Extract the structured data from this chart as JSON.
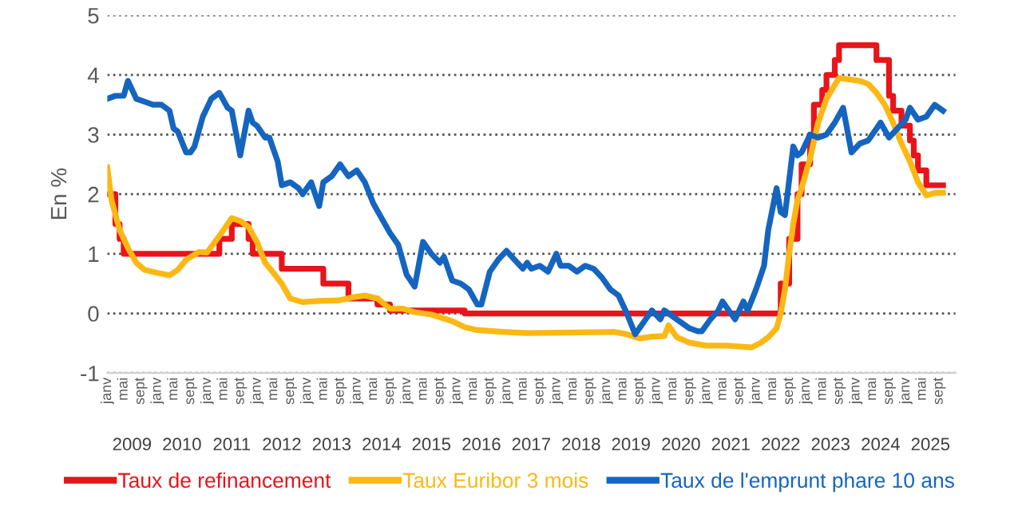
{
  "chart_data": {
    "type": "line",
    "ylabel": "En %",
    "ylim": [
      -1,
      5
    ],
    "yticks": [
      -1,
      0,
      1,
      2,
      3,
      4,
      5
    ],
    "grid": "y",
    "legend": "bottom",
    "marker": "none",
    "line_style": "solid",
    "xlim": [
      "2009-01",
      "2026-01"
    ],
    "xticks": [
      {
        "value": "2009-01",
        "label": "janv"
      },
      {
        "value": "2009-05",
        "label": "mai"
      },
      {
        "value": "2009-09",
        "label": "sept"
      },
      {
        "value": "2010-01",
        "label": "janv"
      },
      {
        "value": "2010-05",
        "label": "mai"
      },
      {
        "value": "2010-09",
        "label": "sept"
      },
      {
        "value": "2011-01",
        "label": "janv"
      },
      {
        "value": "2011-05",
        "label": "mai"
      },
      {
        "value": "2011-09",
        "label": "sept"
      },
      {
        "value": "2012-01",
        "label": "janv"
      },
      {
        "value": "2012-05",
        "label": "mai"
      },
      {
        "value": "2012-09",
        "label": "sept"
      },
      {
        "value": "2013-01",
        "label": "janv"
      },
      {
        "value": "2013-05",
        "label": "mai"
      },
      {
        "value": "2013-09",
        "label": "sept"
      },
      {
        "value": "2014-01",
        "label": "janv"
      },
      {
        "value": "2014-05",
        "label": "mai"
      },
      {
        "value": "2014-09",
        "label": "sept"
      },
      {
        "value": "2015-01",
        "label": "janv"
      },
      {
        "value": "2015-05",
        "label": "mai"
      },
      {
        "value": "2015-09",
        "label": "sept"
      },
      {
        "value": "2016-01",
        "label": "janv"
      },
      {
        "value": "2016-05",
        "label": "mai"
      },
      {
        "value": "2016-09",
        "label": "sept"
      },
      {
        "value": "2017-01",
        "label": "janv"
      },
      {
        "value": "2017-05",
        "label": "mai"
      },
      {
        "value": "2017-09",
        "label": "sept"
      },
      {
        "value": "2018-01",
        "label": "janv"
      },
      {
        "value": "2018-05",
        "label": "mai"
      },
      {
        "value": "2018-09",
        "label": "sept"
      },
      {
        "value": "2019-01",
        "label": "janv"
      },
      {
        "value": "2019-05",
        "label": "mai"
      },
      {
        "value": "2019-09",
        "label": "sept"
      },
      {
        "value": "2020-01",
        "label": "janv"
      },
      {
        "value": "2020-05",
        "label": "mai"
      },
      {
        "value": "2020-09",
        "label": "sept"
      },
      {
        "value": "2021-01",
        "label": "janv"
      },
      {
        "value": "2021-05",
        "label": "mai"
      },
      {
        "value": "2021-09",
        "label": "sept"
      },
      {
        "value": "2022-01",
        "label": "janv"
      },
      {
        "value": "2022-05",
        "label": "mai"
      },
      {
        "value": "2022-09",
        "label": "sept"
      },
      {
        "value": "2023-01",
        "label": "janv"
      },
      {
        "value": "2023-05",
        "label": "mai"
      },
      {
        "value": "2023-09",
        "label": "sept"
      },
      {
        "value": "2024-01",
        "label": "janv"
      },
      {
        "value": "2024-05",
        "label": "mai"
      },
      {
        "value": "2024-09",
        "label": "sept"
      },
      {
        "value": "2025-01",
        "label": "janv"
      },
      {
        "value": "2025-05",
        "label": "mai"
      },
      {
        "value": "2025-09",
        "label": "sept"
      }
    ],
    "x2lim": [
      "2009-01",
      "2026-01"
    ],
    "x2ticks": [
      {
        "value": "2009-07",
        "label": "2009"
      },
      {
        "value": "2010-07",
        "label": "2010"
      },
      {
        "value": "2011-07",
        "label": "2011"
      },
      {
        "value": "2012-07",
        "label": "2012"
      },
      {
        "value": "2013-07",
        "label": "2013"
      },
      {
        "value": "2014-07",
        "label": "2014"
      },
      {
        "value": "2015-07",
        "label": "2015"
      },
      {
        "value": "2016-07",
        "label": "2016"
      },
      {
        "value": "2017-07",
        "label": "2017"
      },
      {
        "value": "2018-07",
        "label": "2018"
      },
      {
        "value": "2019-07",
        "label": "2019"
      },
      {
        "value": "2020-07",
        "label": "2020"
      },
      {
        "value": "2021-07",
        "label": "2021"
      },
      {
        "value": "2022-07",
        "label": "2022"
      },
      {
        "value": "2023-07",
        "label": "2023"
      },
      {
        "value": "2024-07",
        "label": "2024"
      },
      {
        "value": "2025-07",
        "label": "2025"
      }
    ],
    "series": [
      {
        "name": "Taux de refinancement",
        "type": "step",
        "color": "#e8141b",
        "x": [
          "2009-01",
          "2009-03",
          "2009-04",
          "2009-05",
          "2011-04",
          "2011-07",
          "2011-11",
          "2011-12",
          "2012-07",
          "2013-05",
          "2013-11",
          "2014-06",
          "2014-09",
          "2016-03",
          "2022-07",
          "2022-09",
          "2022-11",
          "2022-12",
          "2023-02",
          "2023-03",
          "2023-05",
          "2023-06",
          "2023-08",
          "2023-09",
          "2024-06",
          "2024-09",
          "2024-10",
          "2024-12",
          "2025-02",
          "2025-03",
          "2025-04",
          "2025-06",
          "2025-10"
        ],
        "values": [
          2.0,
          1.5,
          1.25,
          1.0,
          1.25,
          1.5,
          1.25,
          1.0,
          0.75,
          0.5,
          0.25,
          0.15,
          0.05,
          0.0,
          0.5,
          1.25,
          2.0,
          2.5,
          3.0,
          3.5,
          3.75,
          4.0,
          4.25,
          4.5,
          4.25,
          3.65,
          3.4,
          3.15,
          2.9,
          2.65,
          2.4,
          2.15,
          2.15
        ]
      },
      {
        "name": "Taux Euribor 3 mois",
        "color": "#fbb814",
        "x": [
          "2009-01",
          "2009-02",
          "2009-04",
          "2009-06",
          "2009-08",
          "2009-10",
          "2010-01",
          "2010-04",
          "2010-06",
          "2010-08",
          "2010-11",
          "2011-01",
          "2011-04",
          "2011-07",
          "2011-09",
          "2011-11",
          "2012-01",
          "2012-03",
          "2012-05",
          "2012-07",
          "2012-09",
          "2012-12",
          "2013-04",
          "2013-09",
          "2013-12",
          "2014-03",
          "2014-06",
          "2014-09",
          "2014-12",
          "2015-03",
          "2015-07",
          "2015-12",
          "2016-03",
          "2016-06",
          "2016-12",
          "2017-06",
          "2018-06",
          "2019-03",
          "2019-06",
          "2019-09",
          "2019-12",
          "2020-03",
          "2020-04",
          "2020-06",
          "2020-09",
          "2021-01",
          "2021-06",
          "2021-12",
          "2022-02",
          "2022-04",
          "2022-06",
          "2022-07",
          "2022-08",
          "2022-09",
          "2022-10",
          "2022-11",
          "2022-12",
          "2023-02",
          "2023-04",
          "2023-06",
          "2023-09",
          "2023-12",
          "2024-02",
          "2024-04",
          "2024-06",
          "2024-08",
          "2024-10",
          "2024-12",
          "2025-02",
          "2025-04",
          "2025-06",
          "2025-08",
          "2025-10"
        ],
        "values": [
          2.45,
          1.9,
          1.4,
          1.1,
          0.85,
          0.73,
          0.68,
          0.64,
          0.73,
          0.9,
          1.03,
          1.02,
          1.3,
          1.6,
          1.55,
          1.45,
          1.2,
          0.85,
          0.68,
          0.5,
          0.25,
          0.19,
          0.21,
          0.22,
          0.27,
          0.3,
          0.25,
          0.08,
          0.08,
          0.02,
          -0.02,
          -0.13,
          -0.23,
          -0.28,
          -0.31,
          -0.33,
          -0.32,
          -0.31,
          -0.35,
          -0.42,
          -0.39,
          -0.38,
          -0.2,
          -0.4,
          -0.49,
          -0.54,
          -0.54,
          -0.57,
          -0.5,
          -0.4,
          -0.25,
          0.0,
          0.4,
          1.0,
          1.5,
          1.9,
          2.1,
          2.6,
          3.2,
          3.6,
          3.95,
          3.92,
          3.9,
          3.85,
          3.7,
          3.5,
          3.2,
          2.85,
          2.55,
          2.2,
          1.98,
          2.02,
          2.02
        ]
      },
      {
        "name": "Taux de l'emprunt phare 10 ans",
        "color": "#1565c0",
        "x": [
          "2009-01",
          "2009-03",
          "2009-05",
          "2009-06",
          "2009-08",
          "2009-10",
          "2009-12",
          "2010-02",
          "2010-04",
          "2010-05",
          "2010-06",
          "2010-08",
          "2010-09",
          "2010-10",
          "2010-12",
          "2011-02",
          "2011-04",
          "2011-06",
          "2011-07",
          "2011-09",
          "2011-11",
          "2011-12",
          "2012-01",
          "2012-03",
          "2012-04",
          "2012-06",
          "2012-07",
          "2012-09",
          "2012-11",
          "2012-12",
          "2013-02",
          "2013-04",
          "2013-05",
          "2013-07",
          "2013-09",
          "2013-11",
          "2014-01",
          "2014-03",
          "2014-05",
          "2014-07",
          "2014-09",
          "2014-11",
          "2015-01",
          "2015-03",
          "2015-05",
          "2015-07",
          "2015-09",
          "2015-10",
          "2015-12",
          "2016-02",
          "2016-04",
          "2016-06",
          "2016-07",
          "2016-09",
          "2016-11",
          "2017-01",
          "2017-03",
          "2017-05",
          "2017-06",
          "2017-07",
          "2017-09",
          "2017-11",
          "2018-01",
          "2018-02",
          "2018-04",
          "2018-06",
          "2018-08",
          "2018-10",
          "2018-12",
          "2019-02",
          "2019-04",
          "2019-06",
          "2019-08",
          "2019-10",
          "2019-12",
          "2020-02",
          "2020-03",
          "2020-05",
          "2020-07",
          "2020-09",
          "2020-11",
          "2020-12",
          "2021-02",
          "2021-04",
          "2021-05",
          "2021-07",
          "2021-08",
          "2021-10",
          "2021-11",
          "2022-01",
          "2022-03",
          "2022-04",
          "2022-06",
          "2022-07",
          "2022-08",
          "2022-10",
          "2022-11",
          "2022-12",
          "2023-02",
          "2023-04",
          "2023-06",
          "2023-08",
          "2023-10",
          "2023-12",
          "2024-02",
          "2024-04",
          "2024-06",
          "2024-07",
          "2024-09",
          "2024-11",
          "2025-01",
          "2025-02",
          "2025-04",
          "2025-06",
          "2025-08",
          "2025-09",
          "2025-10"
        ],
        "values": [
          3.6,
          3.65,
          3.65,
          3.9,
          3.6,
          3.55,
          3.5,
          3.5,
          3.4,
          3.1,
          3.05,
          2.7,
          2.7,
          2.8,
          3.3,
          3.6,
          3.7,
          3.45,
          3.4,
          2.65,
          3.4,
          3.2,
          3.15,
          2.95,
          2.95,
          2.55,
          2.15,
          2.2,
          2.1,
          2.0,
          2.2,
          1.8,
          2.2,
          2.3,
          2.5,
          2.3,
          2.4,
          2.2,
          1.85,
          1.6,
          1.35,
          1.15,
          0.65,
          0.45,
          1.2,
          1.0,
          0.85,
          0.95,
          0.55,
          0.5,
          0.4,
          0.15,
          0.15,
          0.7,
          0.9,
          1.05,
          0.9,
          0.75,
          0.85,
          0.75,
          0.8,
          0.7,
          1.0,
          0.8,
          0.8,
          0.7,
          0.8,
          0.75,
          0.6,
          0.4,
          0.3,
          0.0,
          -0.35,
          -0.15,
          0.05,
          -0.1,
          0.05,
          -0.05,
          -0.15,
          -0.25,
          -0.3,
          -0.3,
          -0.1,
          0.05,
          0.2,
          0.0,
          -0.1,
          0.2,
          0.05,
          0.4,
          0.8,
          1.4,
          2.1,
          1.7,
          1.65,
          2.8,
          2.65,
          2.7,
          3.0,
          2.95,
          3.0,
          3.2,
          3.45,
          2.7,
          2.85,
          2.9,
          3.1,
          3.2,
          2.95,
          3.1,
          3.25,
          3.45,
          3.25,
          3.3,
          3.5,
          3.45,
          3.4
        ]
      }
    ]
  }
}
